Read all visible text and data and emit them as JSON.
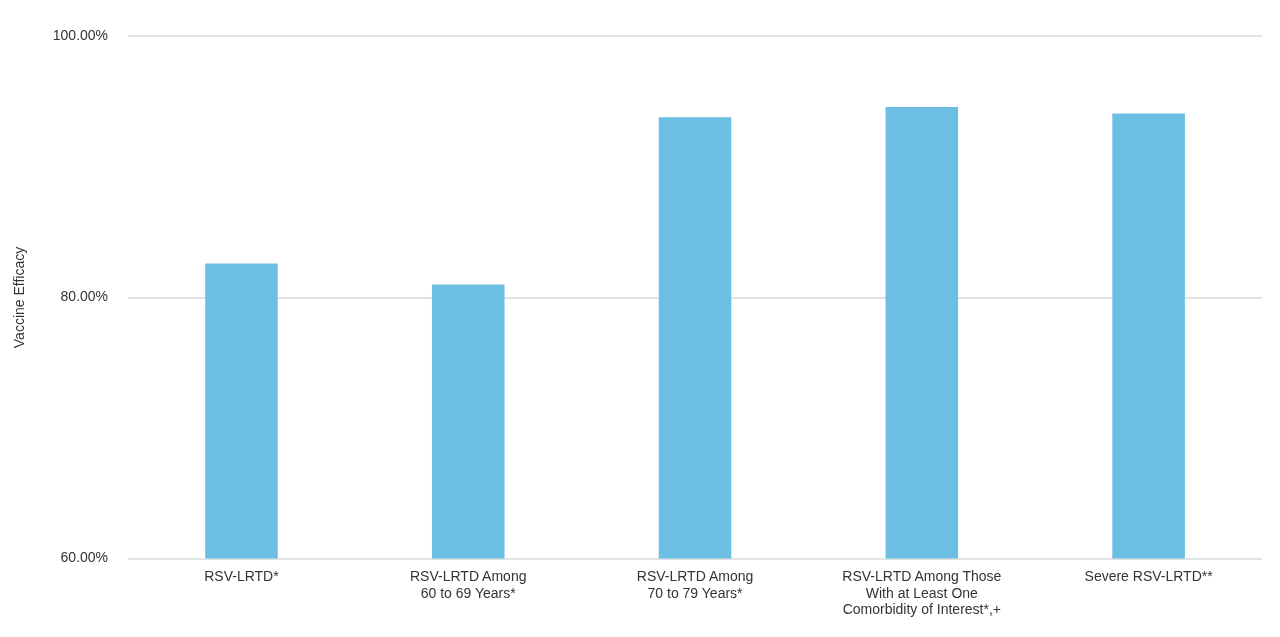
{
  "chart_data": {
    "type": "bar",
    "ylabel": "Vaccine Efficacy",
    "categories": [
      "RSV-LRTD*",
      "RSV-LRTD Among\n60 to 69 Years*",
      "RSV-LRTD Among\n70 to 79 Years*",
      "RSV-LRTD Among Those\nWith at Least One\nComorbidity of Interest*,+",
      "Severe RSV-LRTD**"
    ],
    "values": [
      82.6,
      81.0,
      93.8,
      94.6,
      94.1
    ],
    "color": "#6cbfe3",
    "ylim": [
      60,
      100
    ],
    "yticks": [
      {
        "value": 60,
        "label": "60.00%"
      },
      {
        "value": 80,
        "label": "80.00%"
      },
      {
        "value": 100,
        "label": "100.00%"
      }
    ],
    "grid": "y",
    "legend": false
  }
}
